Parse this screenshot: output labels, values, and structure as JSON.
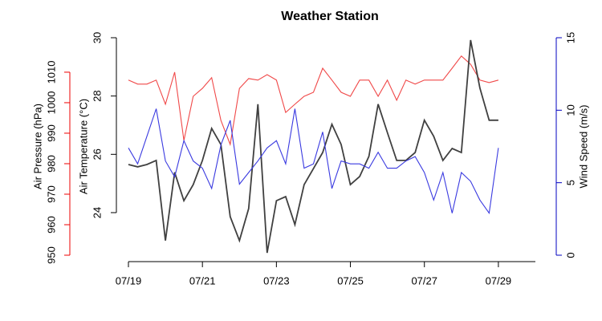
{
  "chart_data": {
    "type": "line",
    "title": "Weather Station",
    "ylabel": "Air Temperature (°C)",
    "y2label": "Wind Speed (m/s)",
    "y3label": "Air Pressure (hPa)",
    "x": [
      0,
      0.25,
      0.5,
      0.75,
      1,
      1.25,
      1.5,
      1.75,
      2,
      2.25,
      2.5,
      2.75,
      3,
      3.25,
      3.5,
      3.75,
      4,
      4.25,
      4.5,
      4.75,
      5,
      5.25,
      5.5,
      5.75,
      6,
      6.25,
      6.5,
      6.75,
      7,
      7.25,
      7.5,
      7.75,
      8,
      8.25,
      8.5,
      8.75,
      9,
      9.25,
      9.5,
      9.75,
      10
    ],
    "xlim": [
      0,
      11
    ],
    "xticks": [
      {
        "value": 0,
        "label": "07/19"
      },
      {
        "value": 2,
        "label": "07/21"
      },
      {
        "value": 4,
        "label": "07/23"
      },
      {
        "value": 6,
        "label": "07/25"
      },
      {
        "value": 8,
        "label": "07/27"
      },
      {
        "value": 10,
        "label": "07/29"
      }
    ],
    "ylim": [
      22.54,
      30
    ],
    "yticks": [
      24,
      26,
      28,
      30
    ],
    "axis_color": "#000000",
    "y2lim": [
      0,
      15
    ],
    "y2ticks": [
      0,
      5,
      10,
      15
    ],
    "y2_axis_color": "#0000c0",
    "y3lim": [
      950,
      1021.3
    ],
    "y3ticks": [
      950,
      960,
      970,
      980,
      990,
      1000,
      1010
    ],
    "y3_axis_color": "#ee0000",
    "series": [
      {
        "name": "Air Pressure",
        "axis": "y3",
        "color": "#f04848",
        "values": [
          1007.4,
          1006.1,
          1006.1,
          1007.4,
          999.5,
          1010,
          987.6,
          1002.1,
          1004.7,
          1008.2,
          994.2,
          986.3,
          1004.7,
          1007.9,
          1007.4,
          1009.2,
          1007.4,
          996.8,
          999.5,
          1002.1,
          1003.4,
          1011.3,
          1007.4,
          1003.4,
          1002.1,
          1007.4,
          1007.4,
          1002.1,
          1007.4,
          1000.8,
          1007.4,
          1006.1,
          1007.4,
          1007.4,
          1007.4,
          1011.3,
          1015.3,
          1012.6,
          1007.4,
          1006.6,
          1007.4
        ]
      },
      {
        "name": "Air Temperature",
        "axis": "y",
        "color": "#404040",
        "values": [
          25.65,
          25.57,
          25.65,
          25.79,
          23.04,
          25.38,
          24.41,
          24.96,
          25.79,
          26.89,
          26.34,
          23.86,
          23.04,
          24.14,
          27.72,
          22.62,
          24.41,
          24.55,
          23.59,
          24.96,
          25.51,
          26.06,
          27.03,
          26.34,
          24.96,
          25.24,
          25.93,
          27.72,
          26.75,
          25.79,
          25.79,
          26.06,
          27.17,
          26.62,
          25.79,
          26.2,
          26.06,
          29.92,
          28.27,
          27.17,
          27.17
        ]
      },
      {
        "name": "Wind Speed",
        "axis": "y2",
        "color": "#3a3ae0",
        "values": [
          7.4,
          6.3,
          8.2,
          10.1,
          6.5,
          5.4,
          7.9,
          6.5,
          6.0,
          4.6,
          7.6,
          9.3,
          4.9,
          5.7,
          6.5,
          7.4,
          7.9,
          6.3,
          10.1,
          6.0,
          6.3,
          8.5,
          4.6,
          6.5,
          6.3,
          6.3,
          6.0,
          7.1,
          6.0,
          6.0,
          6.5,
          6.8,
          5.7,
          3.8,
          5.7,
          2.9,
          5.7,
          5.1,
          3.8,
          2.9,
          7.4
        ]
      }
    ]
  }
}
